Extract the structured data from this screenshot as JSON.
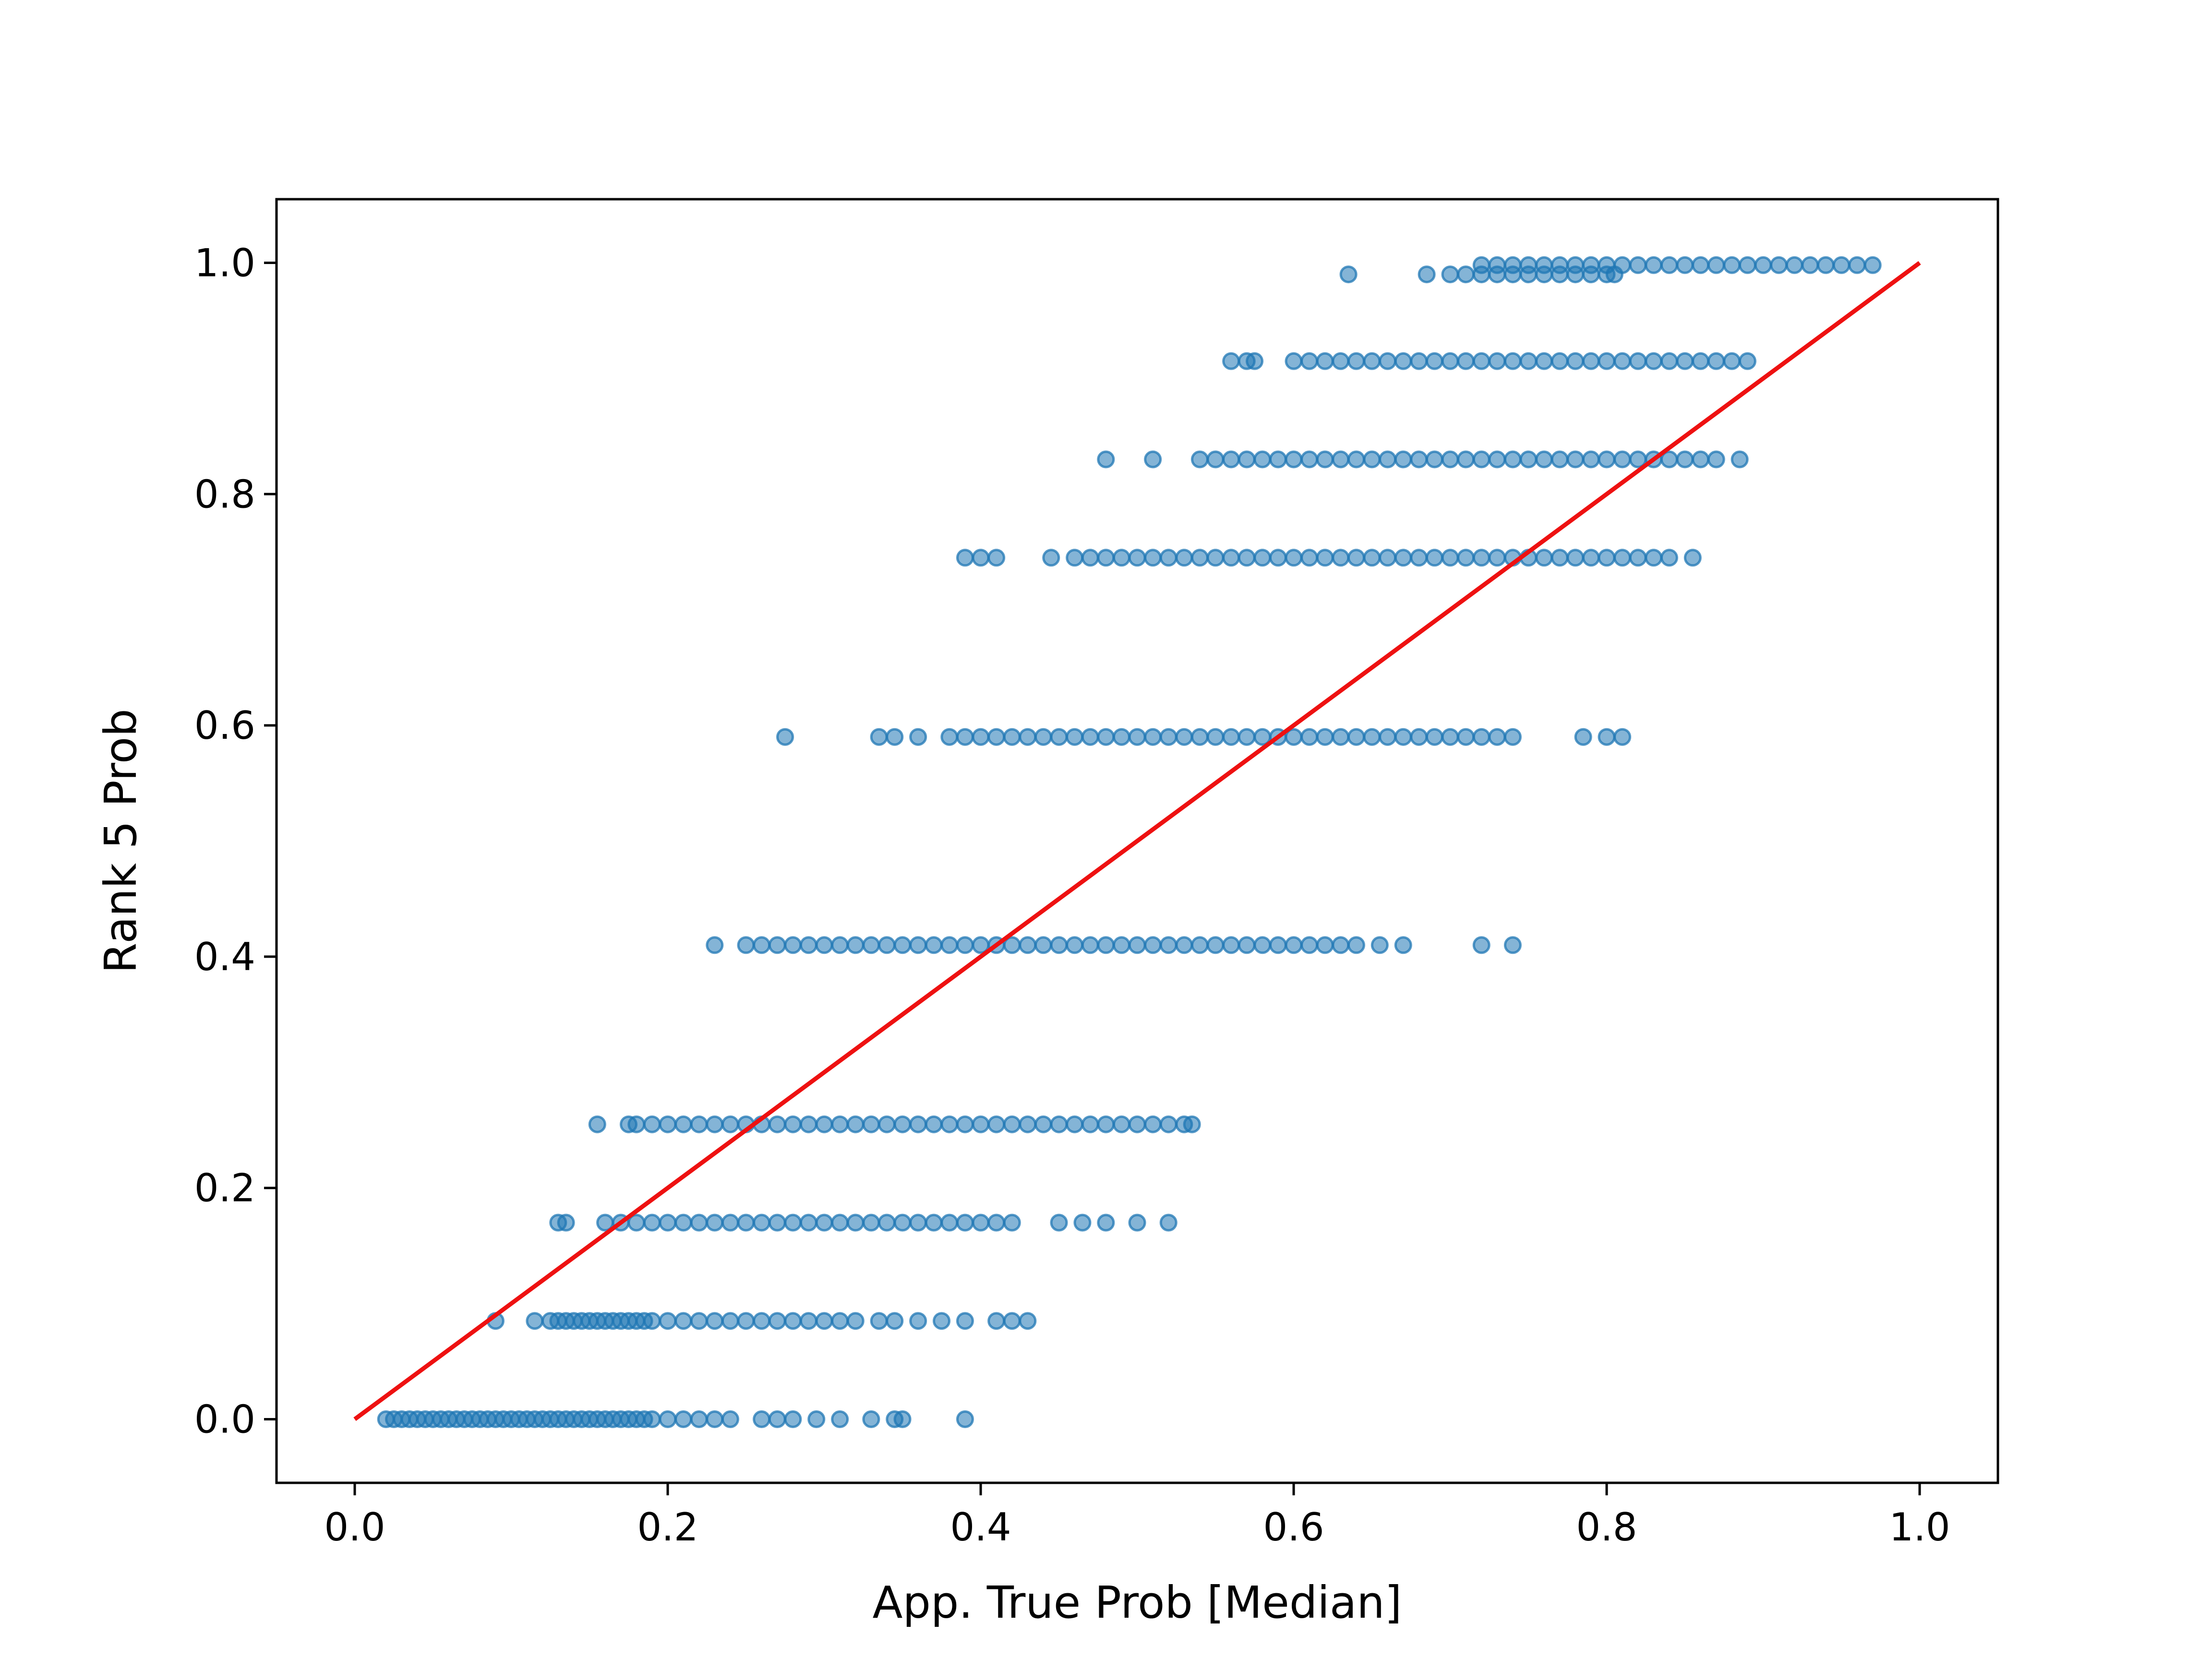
{
  "chart_data": {
    "type": "scatter",
    "title": "",
    "xlabel": "App. True Prob [Median]",
    "ylabel": "Rank 5 Prob",
    "xlim": [
      -0.05,
      1.05
    ],
    "ylim": [
      -0.055,
      1.055
    ],
    "xticks": [
      "0.0",
      "0.2",
      "0.4",
      "0.6",
      "0.8",
      "1.0"
    ],
    "yticks": [
      "0.0",
      "0.2",
      "0.4",
      "0.6",
      "0.8",
      "1.0"
    ],
    "grid": false,
    "legend": "none",
    "colors": {
      "points": "#1f77b4",
      "reference_line": "#ee1111"
    },
    "series": [
      {
        "type": "scatter",
        "point_alpha": 0.55,
        "rows": [
          {
            "y": 0.0,
            "x": [
              0.02,
              0.025,
              0.03,
              0.035,
              0.04,
              0.045,
              0.05,
              0.055,
              0.06,
              0.065,
              0.07,
              0.075,
              0.08,
              0.085,
              0.09,
              0.095,
              0.1,
              0.105,
              0.11,
              0.115,
              0.12,
              0.125,
              0.13,
              0.135,
              0.14,
              0.145,
              0.15,
              0.155,
              0.16,
              0.165,
              0.17,
              0.175,
              0.18,
              0.185,
              0.19,
              0.2,
              0.21,
              0.22,
              0.23,
              0.24,
              0.26,
              0.27,
              0.28,
              0.295,
              0.31,
              0.33,
              0.345,
              0.35,
              0.39
            ]
          },
          {
            "y": 0.085,
            "x": [
              0.09,
              0.115,
              0.125,
              0.13,
              0.135,
              0.14,
              0.145,
              0.15,
              0.155,
              0.16,
              0.165,
              0.17,
              0.175,
              0.18,
              0.185,
              0.19,
              0.2,
              0.21,
              0.22,
              0.23,
              0.24,
              0.25,
              0.26,
              0.27,
              0.28,
              0.29,
              0.3,
              0.31,
              0.32,
              0.335,
              0.345,
              0.36,
              0.375,
              0.39,
              0.41,
              0.42,
              0.43
            ]
          },
          {
            "y": 0.17,
            "x": [
              0.13,
              0.135,
              0.16,
              0.17,
              0.18,
              0.19,
              0.2,
              0.21,
              0.22,
              0.23,
              0.24,
              0.25,
              0.26,
              0.27,
              0.28,
              0.29,
              0.3,
              0.31,
              0.32,
              0.33,
              0.34,
              0.35,
              0.36,
              0.37,
              0.38,
              0.39,
              0.4,
              0.41,
              0.42,
              0.45,
              0.465,
              0.48,
              0.5,
              0.52
            ]
          },
          {
            "y": 0.255,
            "x": [
              0.155,
              0.175,
              0.18,
              0.19,
              0.2,
              0.21,
              0.22,
              0.23,
              0.24,
              0.25,
              0.26,
              0.27,
              0.28,
              0.29,
              0.3,
              0.31,
              0.32,
              0.33,
              0.34,
              0.35,
              0.36,
              0.37,
              0.38,
              0.39,
              0.4,
              0.41,
              0.42,
              0.43,
              0.44,
              0.45,
              0.46,
              0.47,
              0.48,
              0.49,
              0.5,
              0.51,
              0.52,
              0.53,
              0.535
            ]
          },
          {
            "y": 0.41,
            "x": [
              0.23,
              0.25,
              0.26,
              0.27,
              0.28,
              0.29,
              0.3,
              0.31,
              0.32,
              0.33,
              0.34,
              0.35,
              0.36,
              0.37,
              0.38,
              0.39,
              0.4,
              0.41,
              0.42,
              0.43,
              0.44,
              0.45,
              0.46,
              0.47,
              0.48,
              0.49,
              0.5,
              0.51,
              0.52,
              0.53,
              0.54,
              0.55,
              0.56,
              0.57,
              0.58,
              0.59,
              0.6,
              0.61,
              0.62,
              0.63,
              0.64,
              0.655,
              0.67,
              0.72,
              0.74
            ]
          },
          {
            "y": 0.59,
            "x": [
              0.275,
              0.335,
              0.345,
              0.36,
              0.38,
              0.39,
              0.4,
              0.41,
              0.42,
              0.43,
              0.44,
              0.45,
              0.46,
              0.47,
              0.48,
              0.49,
              0.5,
              0.51,
              0.52,
              0.53,
              0.54,
              0.55,
              0.56,
              0.57,
              0.58,
              0.59,
              0.6,
              0.61,
              0.62,
              0.63,
              0.64,
              0.65,
              0.66,
              0.67,
              0.68,
              0.69,
              0.7,
              0.71,
              0.72,
              0.73,
              0.74,
              0.785,
              0.8,
              0.81
            ]
          },
          {
            "y": 0.745,
            "x": [
              0.39,
              0.4,
              0.41,
              0.445,
              0.46,
              0.47,
              0.48,
              0.49,
              0.5,
              0.51,
              0.52,
              0.53,
              0.54,
              0.55,
              0.56,
              0.57,
              0.58,
              0.59,
              0.6,
              0.61,
              0.62,
              0.63,
              0.64,
              0.65,
              0.66,
              0.67,
              0.68,
              0.69,
              0.7,
              0.71,
              0.72,
              0.73,
              0.74,
              0.75,
              0.76,
              0.77,
              0.78,
              0.79,
              0.8,
              0.81,
              0.82,
              0.83,
              0.84,
              0.855
            ]
          },
          {
            "y": 0.83,
            "x": [
              0.48,
              0.51,
              0.54,
              0.55,
              0.56,
              0.57,
              0.58,
              0.59,
              0.6,
              0.61,
              0.62,
              0.63,
              0.64,
              0.65,
              0.66,
              0.67,
              0.68,
              0.69,
              0.7,
              0.71,
              0.72,
              0.73,
              0.74,
              0.75,
              0.76,
              0.77,
              0.78,
              0.79,
              0.8,
              0.81,
              0.82,
              0.83,
              0.84,
              0.85,
              0.86,
              0.87,
              0.885
            ]
          },
          {
            "y": 0.915,
            "x": [
              0.56,
              0.57,
              0.575,
              0.6,
              0.61,
              0.62,
              0.63,
              0.64,
              0.65,
              0.66,
              0.67,
              0.68,
              0.69,
              0.7,
              0.71,
              0.72,
              0.73,
              0.74,
              0.75,
              0.76,
              0.77,
              0.78,
              0.79,
              0.8,
              0.81,
              0.82,
              0.83,
              0.84,
              0.85,
              0.86,
              0.87,
              0.88,
              0.89
            ]
          },
          {
            "y": 0.99,
            "x": [
              0.635,
              0.685,
              0.7,
              0.71,
              0.72,
              0.73,
              0.74,
              0.75,
              0.76,
              0.77,
              0.78,
              0.79,
              0.8,
              0.805
            ]
          },
          {
            "y": 0.998,
            "x": [
              0.72,
              0.73,
              0.74,
              0.75,
              0.76,
              0.77,
              0.78,
              0.79,
              0.8,
              0.81,
              0.82,
              0.83,
              0.84,
              0.85,
              0.86,
              0.87,
              0.88,
              0.89,
              0.9,
              0.91,
              0.92,
              0.93,
              0.94,
              0.95,
              0.96,
              0.97
            ]
          }
        ]
      },
      {
        "type": "line",
        "x": [
          0.0,
          1.0
        ],
        "y": [
          0.0,
          1.0
        ]
      }
    ]
  }
}
